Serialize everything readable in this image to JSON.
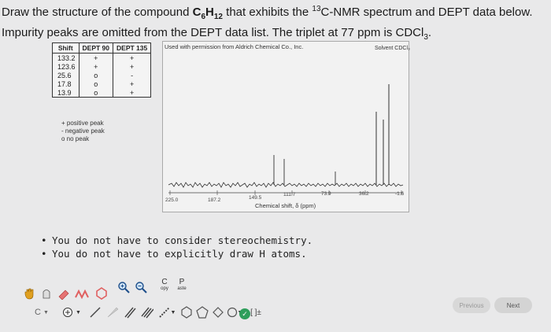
{
  "question": {
    "part1": "Draw the structure of the compound ",
    "formula_c": "C",
    "formula_c_sub": "6",
    "formula_h": "H",
    "formula_h_sub": "12",
    "part2": " that exhibits the ",
    "isotope_sup": "13",
    "part3": "C-NMR spectrum and DEPT data below. Impurity peaks are omitted from the DEPT data list. The triplet at 77 ppm is CDCl",
    "cdcl_sub": "3",
    "part4": "."
  },
  "dept_table": {
    "headers": [
      "Shift",
      "DEPT 90",
      "DEPT 135"
    ],
    "rows": [
      [
        "133.2",
        "+",
        "+"
      ],
      [
        "123.6",
        "+",
        "+"
      ],
      [
        "25.6",
        "o",
        "-"
      ],
      [
        "17.8",
        "o",
        "+"
      ],
      [
        "13.9",
        "o",
        "+"
      ]
    ]
  },
  "legend": [
    "+ positive peak",
    "- negative peak",
    "o no peak"
  ],
  "spectrum": {
    "credit": "Used with permission from Aldrich Chemical Co., Inc.",
    "solvent_label": "Solvent CDCl₃",
    "axis_title": "Chemical shift, δ (ppm)",
    "tick_labels": [
      "225.0",
      "187.2",
      "149.5",
      "111.7",
      "73.9",
      "36.2",
      "-1.6"
    ]
  },
  "notes": [
    "You do not have to consider stereochemistry.",
    "You do not have to explicitly draw H atoms."
  ],
  "toolbar": {
    "copy_label": "C",
    "copy_sub": "opy",
    "paste_label": "P",
    "paste_sub": "aste",
    "bracket_label": "[ ]±"
  },
  "nav": {
    "previous_label": "Previous",
    "next_label": "Next"
  }
}
